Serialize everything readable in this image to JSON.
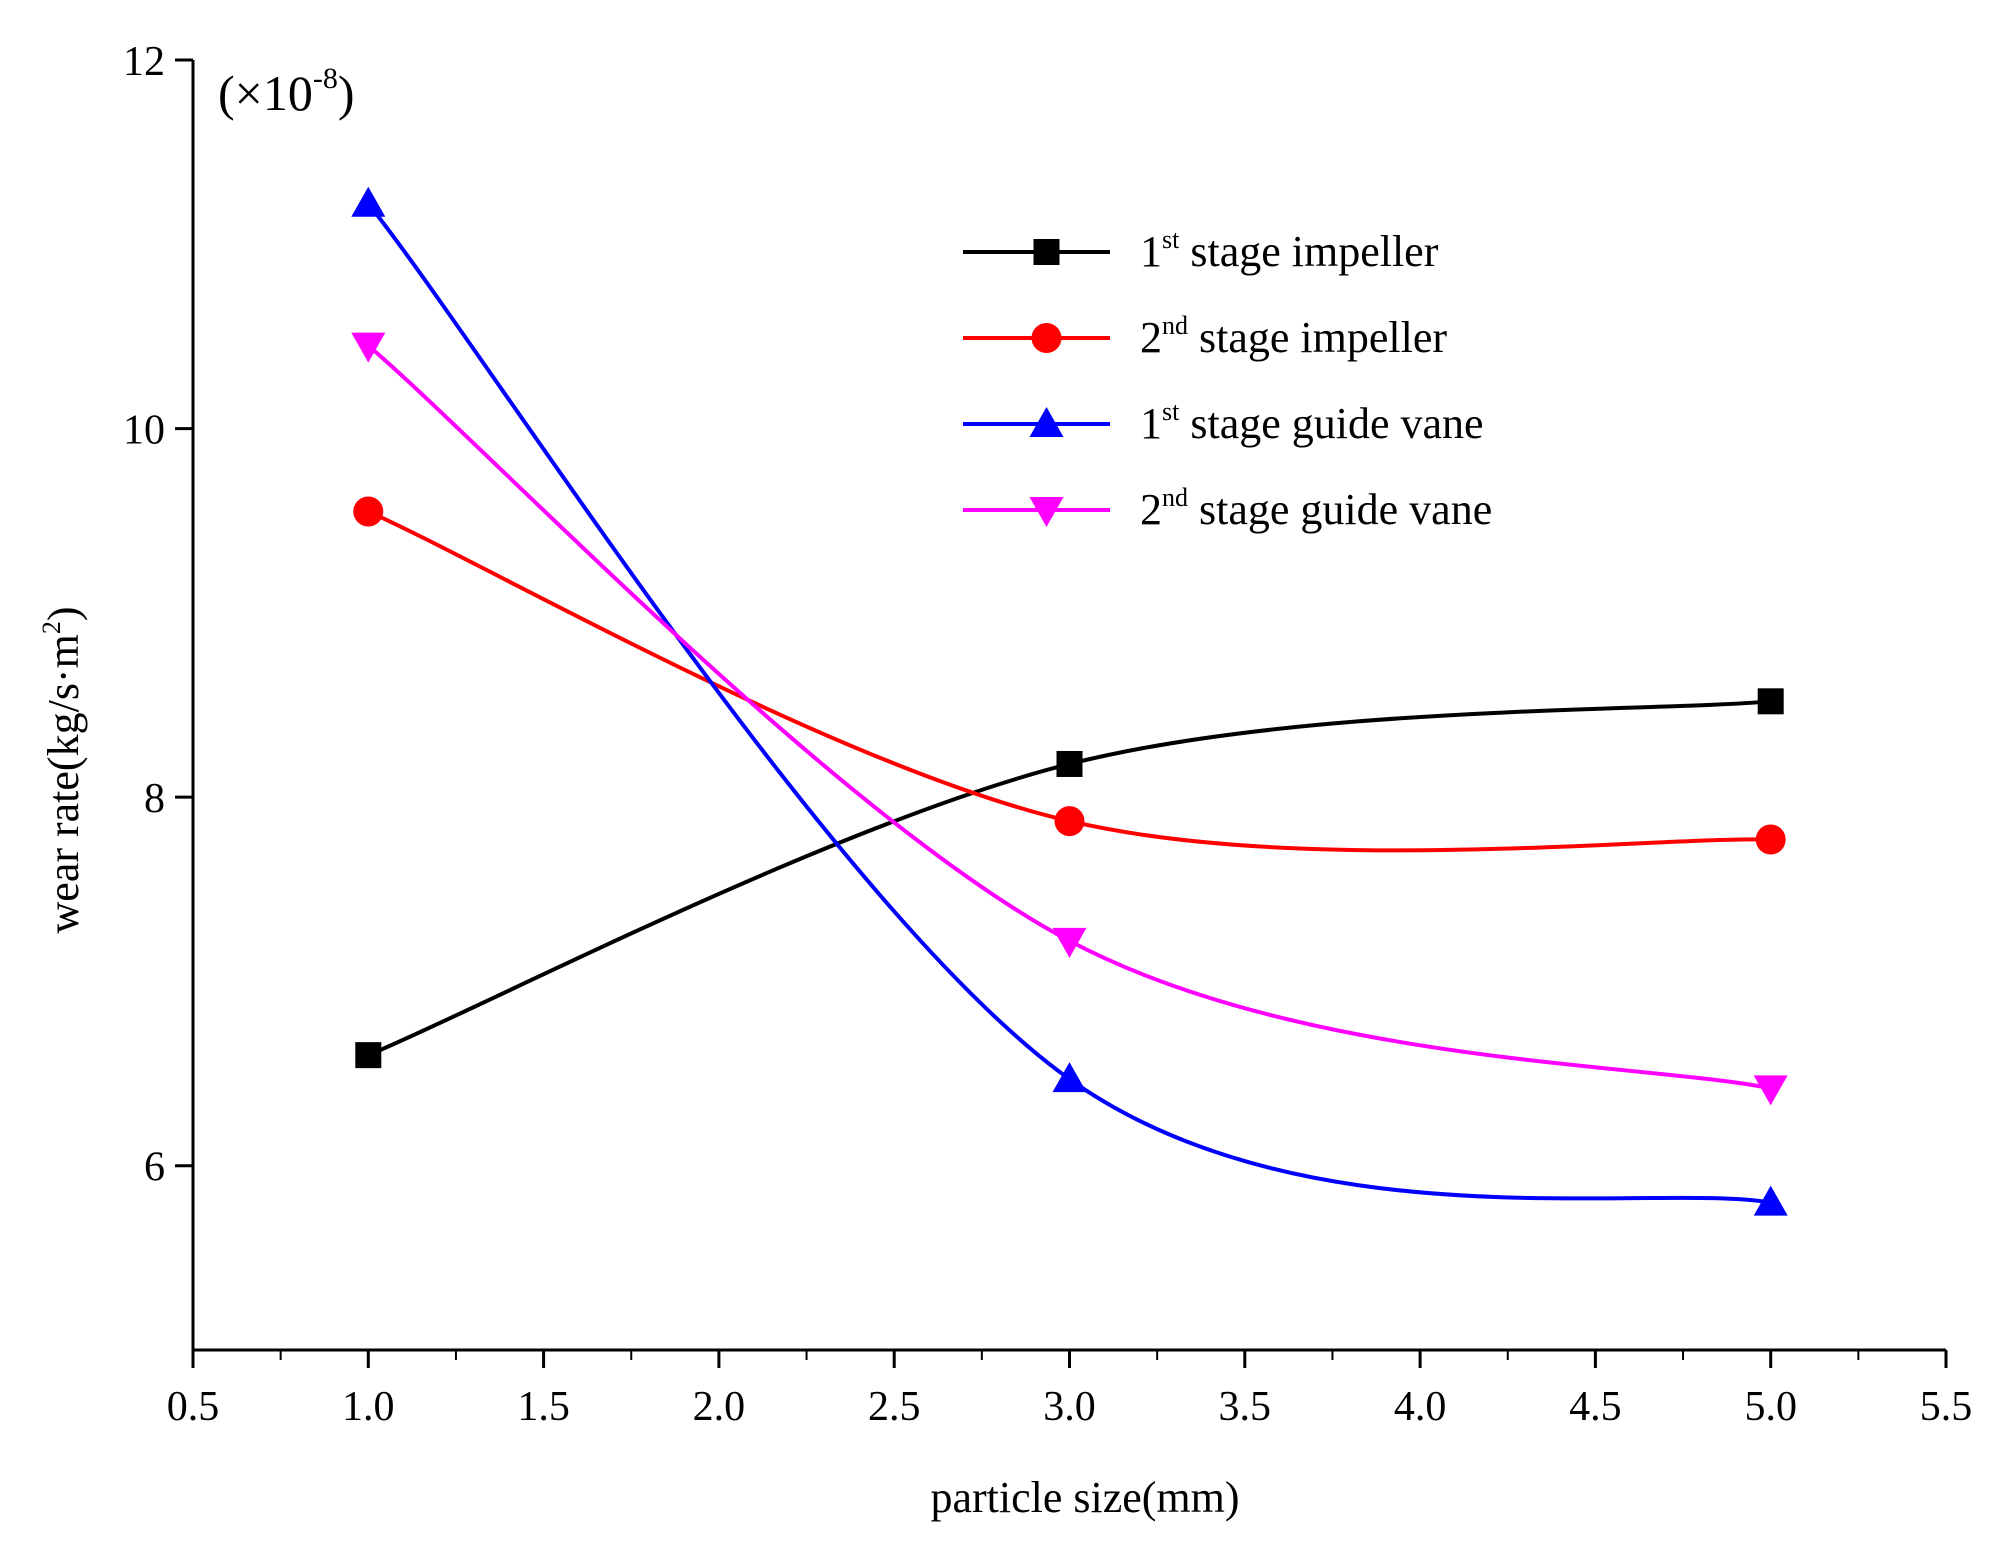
{
  "chart_data": {
    "type": "line",
    "title": "",
    "xlabel": "particle size(mm)",
    "ylabel": "wear rate(kg/s·m",
    "ylabel_sup": "2",
    "ylabel_close": ")",
    "scale_note": "(×10",
    "scale_exp": "-8",
    "scale_close": ")",
    "xlim": [
      0.5,
      5.5
    ],
    "ylim": [
      5,
      12
    ],
    "x_ticks": [
      "0.5",
      "1.0",
      "1.5",
      "2.0",
      "2.5",
      "3.0",
      "3.5",
      "4.0",
      "4.5",
      "5.0",
      "5.5"
    ],
    "y_ticks": [
      "6",
      "8",
      "10",
      "12"
    ],
    "x": [
      1.0,
      3.0,
      5.0
    ],
    "legend_position": "top-right",
    "series": [
      {
        "name_main": "1",
        "name_sup": "st",
        "name_rest": " stage impeller",
        "color": "#000000",
        "marker": "square",
        "values": [
          6.6,
          8.18,
          8.52
        ]
      },
      {
        "name_main": "2",
        "name_sup": "nd",
        "name_rest": " stage impeller",
        "color": "#ff0000",
        "marker": "circle",
        "values": [
          9.55,
          7.87,
          7.77
        ]
      },
      {
        "name_main": "1",
        "name_sup": "st",
        "name_rest": " stage guide vane",
        "color": "#0000ff",
        "marker": "triangle-up",
        "values": [
          11.22,
          6.47,
          5.8
        ]
      },
      {
        "name_main": "2",
        "name_sup": "nd",
        "name_rest": " stage guide vane",
        "color": "#ff00ff",
        "marker": "triangle-down",
        "values": [
          10.45,
          7.22,
          6.42
        ]
      }
    ]
  }
}
